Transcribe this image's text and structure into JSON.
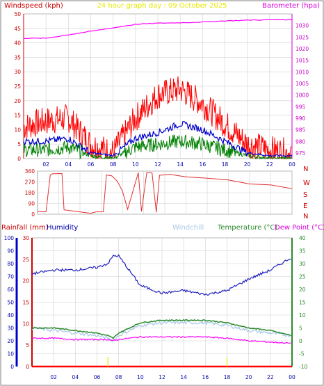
{
  "header": {
    "left_label": "Windspeed (kph)",
    "center_label": "24 hour graph day : 09 October 2025",
    "right_label": "Barometer (hpa)"
  },
  "legend_bottom": {
    "rainfall": "Rainfall (mm)",
    "humidity": "Humidity",
    "windchill": "Windchill",
    "temperature": "Temperature (°C)",
    "dewpoint": "Dew Point (°C)"
  },
  "compass_labels": [
    "N",
    "W",
    "S",
    "E",
    "N"
  ],
  "time_ticks": [
    "02",
    "04",
    "06",
    "08",
    "10",
    "12",
    "14",
    "16",
    "18",
    "20",
    "22",
    "00"
  ],
  "colors": {
    "wind_gust": "#ff0000",
    "wind_avg": "#0000cc",
    "wind_low": "#008000",
    "barometer": "#ff00ff",
    "direction": "#e03030",
    "humidity": "#2020c0",
    "windchill": "#a8c8e8",
    "temperature": "#2a8a2a",
    "dewpoint": "#ff00ff",
    "rain": "#ff0000",
    "grid": "#d0d0d0"
  },
  "chart_data": [
    {
      "type": "line",
      "name": "wind_and_pressure",
      "x_hours": [
        0,
        2,
        4,
        6,
        8,
        10,
        12,
        14,
        16,
        18,
        20,
        22,
        24
      ],
      "ylim_left": [
        0,
        50
      ],
      "yticks_left": [
        0,
        5,
        10,
        15,
        20,
        25,
        30,
        35,
        40,
        45,
        50
      ],
      "ylim_right": [
        975,
        1035
      ],
      "yticks_right": [
        975,
        980,
        985,
        990,
        995,
        1000,
        1005,
        1010,
        1015,
        1020,
        1025,
        1030
      ],
      "series": [
        {
          "name": "Windspeed (kph)",
          "key": "gust",
          "values": [
            11,
            13,
            14,
            5,
            2,
            14,
            22,
            24,
            19,
            12,
            5,
            3,
            2
          ]
        },
        {
          "name": "Windspeed (kph)",
          "key": "avg",
          "values": [
            6,
            6,
            7,
            2,
            1,
            7,
            9,
            12,
            10,
            6,
            2,
            1,
            1
          ]
        },
        {
          "name": "Windspeed (kph)",
          "key": "low",
          "values": [
            3,
            3,
            4,
            1,
            0,
            4,
            5,
            6,
            5,
            3,
            1,
            0,
            0
          ]
        },
        {
          "name": "Barometer (hpa)",
          "key": "baro",
          "values": [
            1024.5,
            1024.5,
            1026,
            1027.5,
            1029,
            1030.5,
            1031,
            1031.2,
            1031.5,
            1032,
            1032.3,
            1032.5,
            1032.5
          ]
        }
      ]
    },
    {
      "type": "line",
      "name": "wind_direction",
      "x_hours": [
        0,
        0.8,
        1.2,
        1.4,
        2.3,
        2.5,
        3.8,
        5.0,
        5.5,
        6.2,
        6.5,
        7.0,
        7.5,
        8.0,
        8.5,
        9.5,
        9.8,
        10.3,
        10.8,
        11.2,
        11.5,
        12.5,
        14,
        16,
        18,
        20,
        22,
        24
      ],
      "ylim": [
        0,
        360
      ],
      "yticks": [
        0,
        90,
        180,
        270,
        360
      ],
      "values": [
        20,
        20,
        330,
        340,
        340,
        40,
        20,
        10,
        20,
        20,
        330,
        320,
        280,
        200,
        40,
        350,
        20,
        350,
        340,
        20,
        330,
        330,
        315,
        305,
        290,
        250,
        240,
        215
      ]
    },
    {
      "type": "line",
      "name": "temp_humidity_rain",
      "x_hours": [
        0,
        2,
        4,
        6,
        7,
        7.5,
        8,
        10,
        12,
        14,
        16,
        18,
        20,
        22,
        24
      ],
      "ylim_humidity": [
        0,
        100
      ],
      "yticks_humidity": [
        0,
        10,
        20,
        30,
        40,
        50,
        60,
        70,
        80,
        90,
        100
      ],
      "ylim_rain": [
        0,
        30
      ],
      "yticks_rain": [
        0,
        5,
        10,
        15,
        20,
        25,
        30
      ],
      "ylim_temp": [
        -10,
        40
      ],
      "yticks_temp": [
        -10,
        -5,
        0,
        5,
        10,
        15,
        20,
        25,
        30,
        35,
        40
      ],
      "series": [
        {
          "name": "Humidity",
          "key": "humidity",
          "values": [
            72,
            75,
            75,
            77,
            80,
            86,
            86,
            63,
            57,
            59,
            56,
            59,
            68,
            75,
            85
          ]
        },
        {
          "name": "Windchill",
          "key": "windchill",
          "values": [
            5,
            4,
            3,
            2,
            1,
            0,
            2,
            6,
            7,
            7,
            7,
            6,
            4,
            3,
            2
          ]
        },
        {
          "name": "Temperature (°C)",
          "key": "temp",
          "values": [
            5,
            5,
            4,
            3,
            2,
            1,
            3,
            7,
            8,
            8,
            8,
            7,
            5,
            4,
            2
          ]
        },
        {
          "name": "Dew Point (°C)",
          "key": "dew",
          "values": [
            1,
            1,
            0.5,
            0.5,
            0.5,
            0,
            0.5,
            1.5,
            1.5,
            1.5,
            1.5,
            1,
            0,
            -0.5,
            -1
          ]
        },
        {
          "name": "Rainfall (mm)",
          "key": "rain",
          "values": [
            0,
            0,
            0,
            0,
            0,
            0,
            0,
            0,
            0,
            0,
            0,
            0,
            0,
            0,
            0
          ]
        }
      ]
    }
  ]
}
